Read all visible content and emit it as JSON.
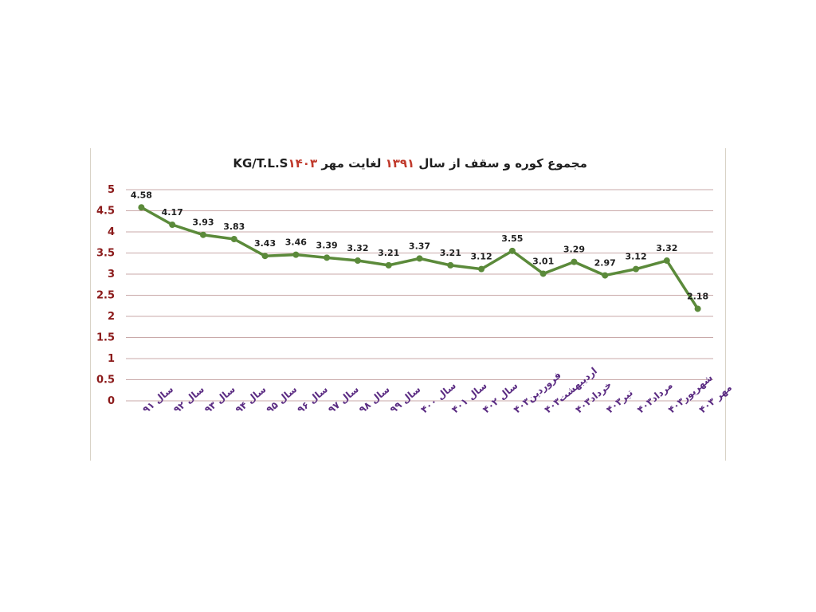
{
  "chart_data": {
    "type": "line",
    "title_parts": {
      "part1": "مجموع کوره و سقف از سال ",
      "year_start": "۱۳۹۱",
      "part2": " لغایت مهر ",
      "year_end": "۱۴۰۳",
      "part3": "  KG/T.L.S"
    },
    "categories": [
      "سال ۹۱",
      "سال ۹۲",
      "سال ۹۳",
      "سال ۹۴",
      "سال ۹۵",
      "سال ۹۶",
      "سال ۹۷",
      "سال ۹۸",
      "سال ۹۹",
      "سال ۴۰۰",
      "سال ۴۰۱",
      "سال ۴۰۲",
      "فروردین۴۰۳",
      "اردیبهشت۴۰۳",
      "خرداد۴۰۳",
      "تیر۴۰۳",
      "مرداد۴۰۳",
      "شهریور۴۰۳",
      "مهر ۴۰۳"
    ],
    "values": [
      4.58,
      4.17,
      3.93,
      3.83,
      3.43,
      3.46,
      3.39,
      3.32,
      3.21,
      3.37,
      3.21,
      3.12,
      3.55,
      3.01,
      3.29,
      2.97,
      3.12,
      3.32,
      2.18
    ],
    "data_labels": [
      "4.58",
      "4.17",
      "3.93",
      "3.83",
      "3.43",
      "3.46",
      "3.39",
      "3.32",
      "3.21",
      "3.37",
      "3.21",
      "3.12",
      "3.55",
      "3.01",
      "3.29",
      "2.97",
      "3.12",
      "3.32",
      "2.18"
    ],
    "yticks": [
      "0",
      "0.5",
      "1",
      "1.5",
      "2",
      "2.5",
      "3",
      "3.5",
      "4",
      "4.5",
      "5"
    ],
    "ylim": [
      0,
      5
    ],
    "grid": true,
    "colors": {
      "line": "#5b8a3a",
      "grid": "#c9a9a9",
      "ytick": "#8b1a1a",
      "xtick": "#5b2c83",
      "label": "#1f1f1f",
      "title_highlight": "#c0392b"
    }
  }
}
